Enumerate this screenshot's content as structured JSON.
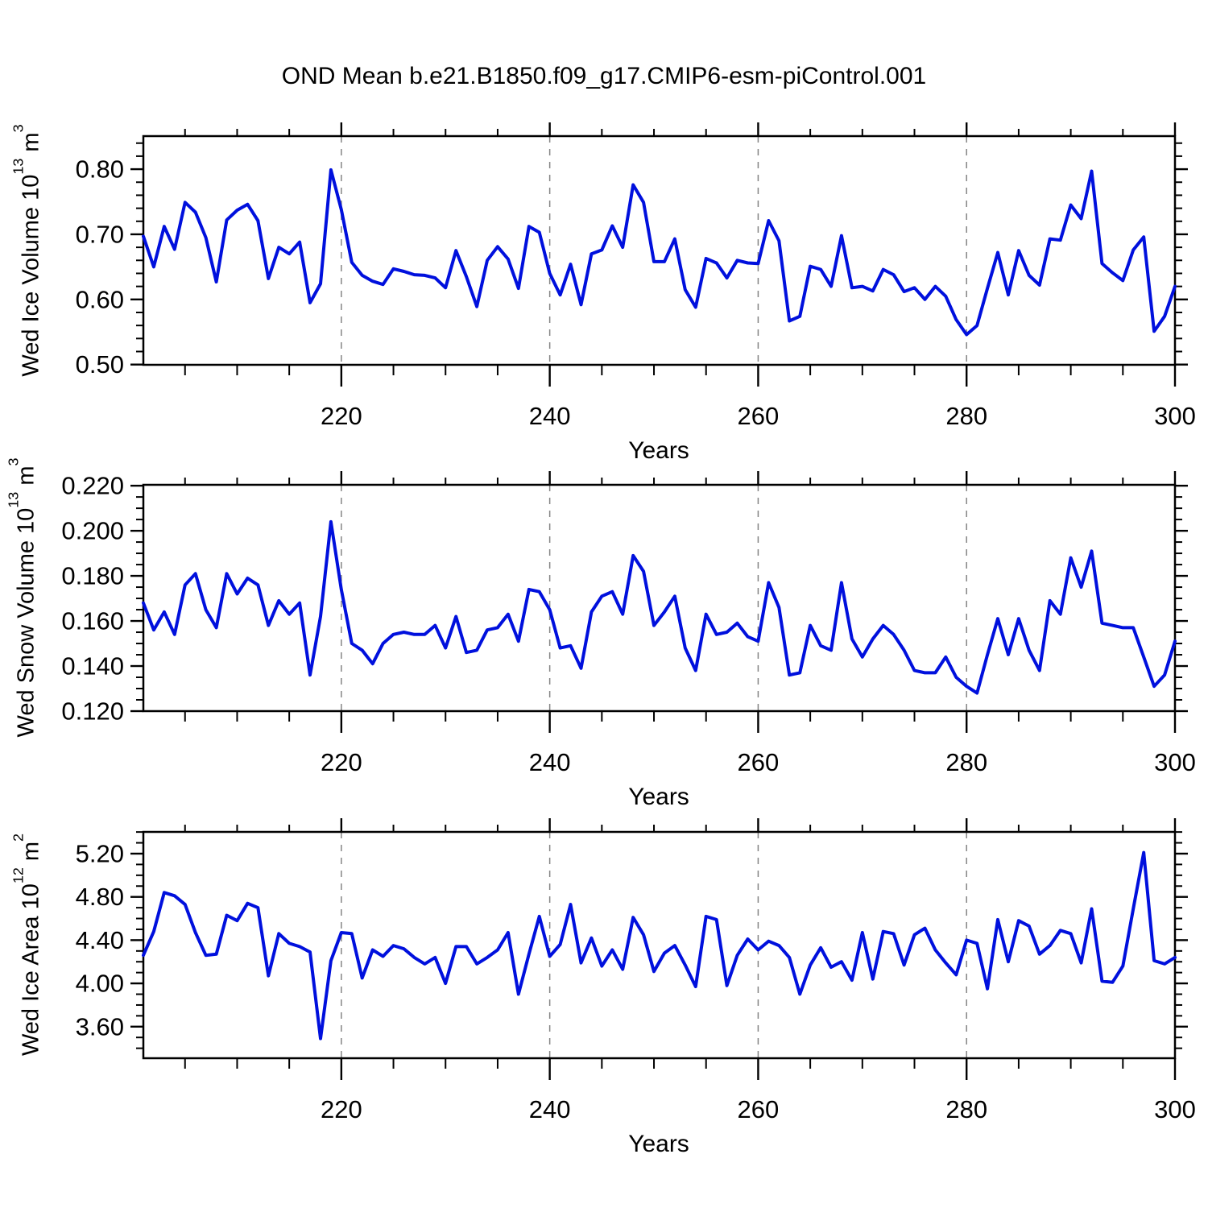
{
  "title": "OND Mean b.e21.B1850.f09_g17.CMIP6-esm-piControl.001",
  "line_color": "#0010dd",
  "grid_color": "#848484",
  "frame_color": "#000000",
  "years": [
    201,
    202,
    203,
    204,
    205,
    206,
    207,
    208,
    209,
    210,
    211,
    212,
    213,
    214,
    215,
    216,
    217,
    218,
    219,
    220,
    221,
    222,
    223,
    224,
    225,
    226,
    227,
    228,
    229,
    230,
    231,
    232,
    233,
    234,
    235,
    236,
    237,
    238,
    239,
    240,
    241,
    242,
    243,
    244,
    245,
    246,
    247,
    248,
    249,
    250,
    251,
    252,
    253,
    254,
    255,
    256,
    257,
    258,
    259,
    260,
    261,
    262,
    263,
    264,
    265,
    266,
    267,
    268,
    269,
    270,
    271,
    272,
    273,
    274,
    275,
    276,
    277,
    278,
    279,
    280,
    281,
    282,
    283,
    284,
    285,
    286,
    287,
    288,
    289,
    290,
    291,
    292,
    293,
    294,
    295,
    296,
    297,
    298,
    299,
    300
  ],
  "xticks": [
    220,
    240,
    260,
    280,
    300
  ],
  "xtick_labels": [
    "220",
    "240",
    "260",
    "280",
    "300"
  ],
  "grid_years": [
    220,
    240,
    260,
    280
  ],
  "xminor_step": 5,
  "chart_data": [
    {
      "type": "line",
      "name": "wed-ice-volume",
      "xlabel": "Years",
      "ylabel": {
        "pre": "Wed Ice Volume 10",
        "sup1": "13",
        "mid": " m",
        "sup2": "3"
      },
      "ylabel_text": "Wed Ice Volume 10^13 m^3",
      "xlim": [
        201,
        300
      ],
      "ylim": [
        0.4996,
        0.8508
      ],
      "yticks": [
        0.5,
        0.6,
        0.7,
        0.8
      ],
      "ytick_labels": [
        "0.50",
        "0.60",
        "0.70",
        "0.80"
      ],
      "yminor_step": 0.02,
      "values": [
        0.697,
        0.65,
        0.712,
        0.677,
        0.749,
        0.734,
        0.695,
        0.627,
        0.722,
        0.737,
        0.746,
        0.721,
        0.632,
        0.68,
        0.67,
        0.688,
        0.595,
        0.624,
        0.799,
        0.738,
        0.657,
        0.637,
        0.628,
        0.623,
        0.647,
        0.643,
        0.638,
        0.637,
        0.633,
        0.618,
        0.675,
        0.635,
        0.589,
        0.66,
        0.681,
        0.662,
        0.617,
        0.712,
        0.703,
        0.64,
        0.607,
        0.654,
        0.592,
        0.67,
        0.676,
        0.713,
        0.68,
        0.776,
        0.749,
        0.658,
        0.658,
        0.693,
        0.615,
        0.588,
        0.663,
        0.656,
        0.633,
        0.66,
        0.656,
        0.655,
        0.721,
        0.69,
        0.567,
        0.574,
        0.651,
        0.646,
        0.62,
        0.698,
        0.618,
        0.62,
        0.613,
        0.646,
        0.638,
        0.612,
        0.618,
        0.6,
        0.62,
        0.605,
        0.569,
        0.546,
        0.56,
        0.617,
        0.672,
        0.607,
        0.675,
        0.637,
        0.622,
        0.693,
        0.691,
        0.745,
        0.724,
        0.797,
        0.655,
        0.641,
        0.629,
        0.676,
        0.696,
        0.551,
        0.574,
        0.62
      ]
    },
    {
      "type": "line",
      "name": "wed-snow-volume",
      "xlabel": "Years",
      "ylabel": {
        "pre": "Wed Snow Volume 10",
        "sup1": "13",
        "mid": " m",
        "sup2": "3"
      },
      "ylabel_text": "Wed Snow Volume 10^13 m^3",
      "xlim": [
        201,
        300
      ],
      "ylim": [
        0.12,
        0.2204
      ],
      "yticks": [
        0.12,
        0.14,
        0.16,
        0.18,
        0.2,
        0.22
      ],
      "ytick_labels": [
        "0.120",
        "0.140",
        "0.160",
        "0.180",
        "0.200",
        "0.220"
      ],
      "yminor_step": 0.005,
      "values": [
        0.168,
        0.156,
        0.164,
        0.154,
        0.176,
        0.181,
        0.165,
        0.157,
        0.181,
        0.172,
        0.179,
        0.176,
        0.158,
        0.169,
        0.163,
        0.168,
        0.136,
        0.162,
        0.204,
        0.174,
        0.15,
        0.147,
        0.141,
        0.15,
        0.154,
        0.155,
        0.154,
        0.154,
        0.158,
        0.148,
        0.162,
        0.146,
        0.147,
        0.156,
        0.157,
        0.163,
        0.151,
        0.174,
        0.173,
        0.165,
        0.148,
        0.149,
        0.139,
        0.164,
        0.171,
        0.173,
        0.163,
        0.189,
        0.182,
        0.158,
        0.164,
        0.171,
        0.148,
        0.138,
        0.163,
        0.154,
        0.155,
        0.159,
        0.153,
        0.151,
        0.177,
        0.166,
        0.136,
        0.137,
        0.158,
        0.149,
        0.147,
        0.177,
        0.152,
        0.144,
        0.152,
        0.158,
        0.154,
        0.147,
        0.138,
        0.137,
        0.137,
        0.144,
        0.135,
        0.131,
        0.128,
        0.145,
        0.161,
        0.145,
        0.161,
        0.147,
        0.138,
        0.169,
        0.163,
        0.188,
        0.175,
        0.191,
        0.159,
        0.158,
        0.157,
        0.157,
        0.144,
        0.131,
        0.136,
        0.151
      ]
    },
    {
      "type": "line",
      "name": "wed-ice-area",
      "xlabel": "Years",
      "ylabel": {
        "pre": "Wed Ice Area 10",
        "sup1": "12",
        "mid": " m",
        "sup2": "2"
      },
      "ylabel_text": "Wed Ice Area 10^12 m^2",
      "xlim": [
        201,
        300
      ],
      "ylim": [
        3.308,
        5.401
      ],
      "yticks": [
        3.6,
        4.0,
        4.4,
        4.8,
        5.2
      ],
      "ytick_labels": [
        "3.60",
        "4.00",
        "4.40",
        "4.80",
        "5.20"
      ],
      "yminor_step": 0.1,
      "values": [
        4.26,
        4.48,
        4.84,
        4.81,
        4.73,
        4.47,
        4.26,
        4.27,
        4.63,
        4.58,
        4.74,
        4.7,
        4.07,
        4.46,
        4.37,
        4.34,
        4.29,
        3.49,
        4.21,
        4.47,
        4.46,
        4.05,
        4.31,
        4.25,
        4.35,
        4.32,
        4.24,
        4.18,
        4.24,
        4.0,
        4.34,
        4.34,
        4.18,
        4.24,
        4.31,
        4.47,
        3.9,
        4.27,
        4.62,
        4.25,
        4.36,
        4.73,
        4.19,
        4.42,
        4.16,
        4.31,
        4.13,
        4.61,
        4.45,
        4.11,
        4.28,
        4.35,
        4.17,
        3.97,
        4.62,
        4.59,
        3.98,
        4.26,
        4.41,
        4.31,
        4.39,
        4.35,
        4.24,
        3.9,
        4.17,
        4.33,
        4.15,
        4.2,
        4.03,
        4.47,
        4.04,
        4.48,
        4.46,
        4.17,
        4.45,
        4.51,
        4.31,
        4.19,
        4.08,
        4.4,
        4.37,
        3.95,
        4.59,
        4.2,
        4.58,
        4.53,
        4.27,
        4.35,
        4.49,
        4.46,
        4.19,
        4.69,
        4.02,
        4.01,
        4.16,
        4.69,
        5.21,
        4.21,
        4.18,
        4.24
      ]
    }
  ]
}
